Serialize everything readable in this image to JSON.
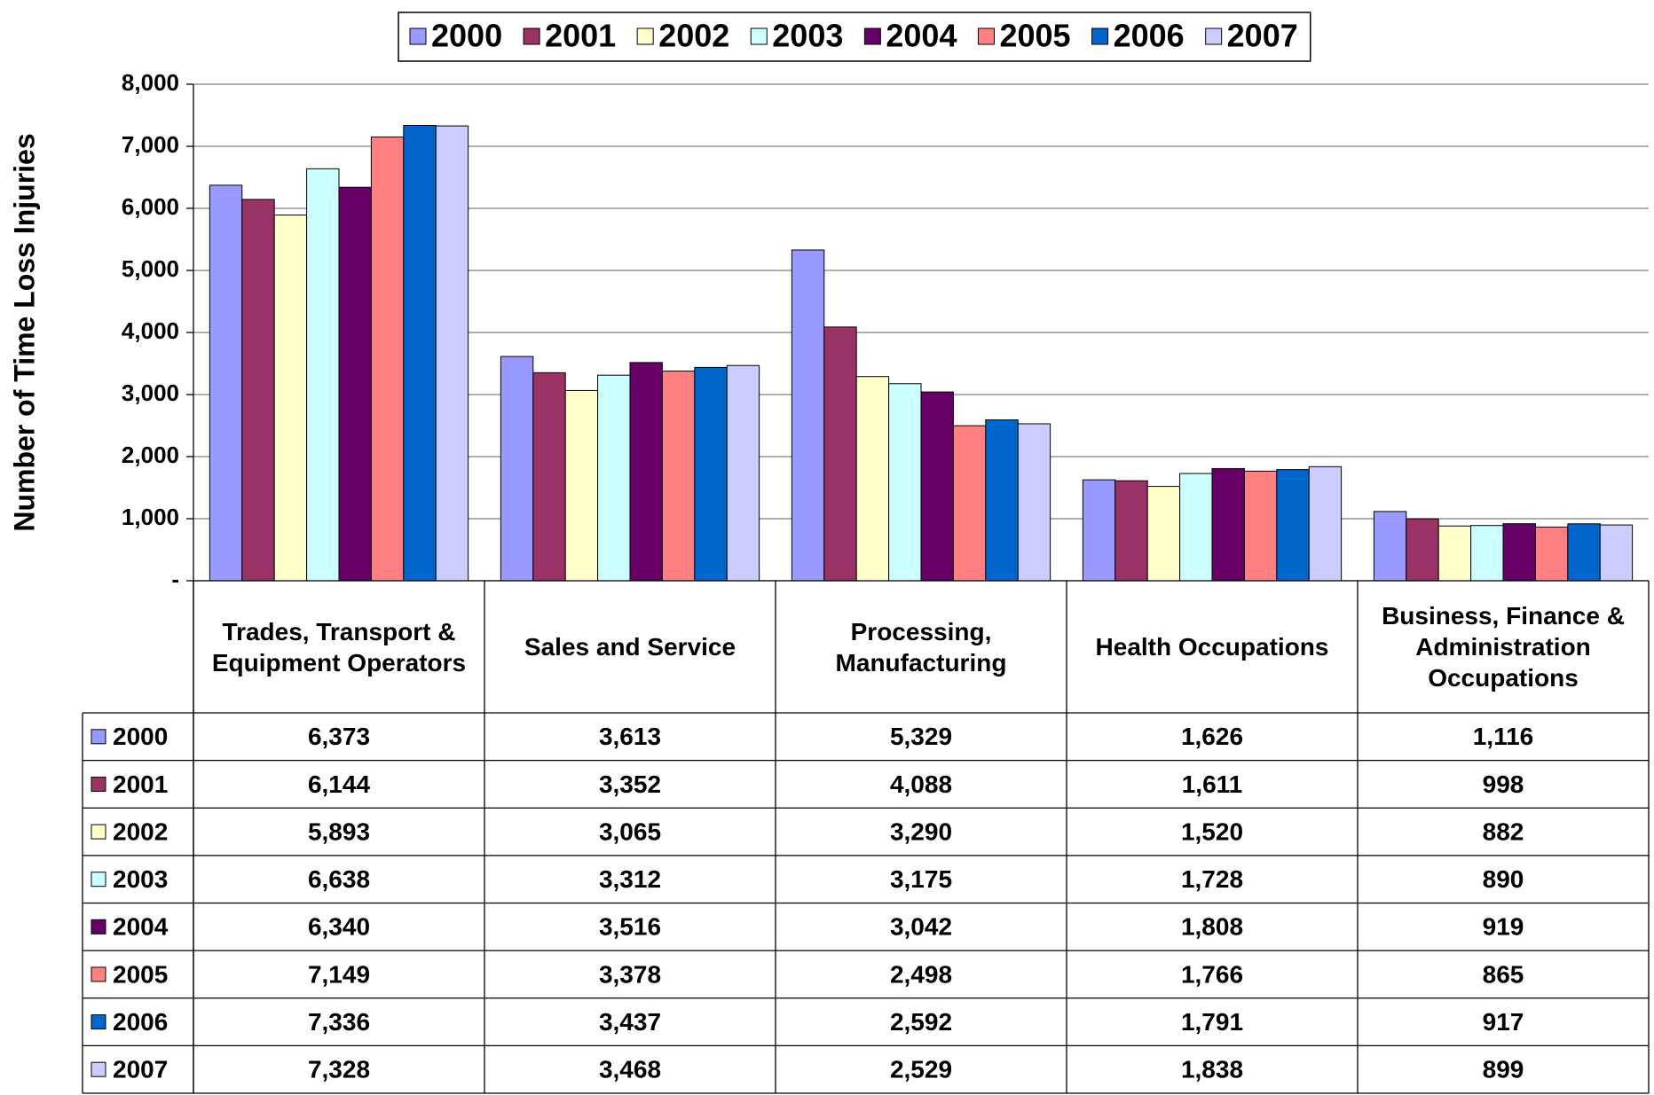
{
  "chart_data": {
    "type": "bar",
    "y_axis_label": "Number of Time Loss Injuries",
    "categories": [
      "Trades, Transport & Equipment Operators",
      "Sales and Service",
      "Processing, Manufacturing",
      "Health Occupations",
      "Business, Finance & Administration Occupations"
    ],
    "series": [
      {
        "name": "2000",
        "color": "#9999ff",
        "values": [
          6373,
          3613,
          5329,
          1626,
          1116
        ],
        "value_labels": [
          "6,373",
          "3,613",
          "5,329",
          "1,626",
          "1,116"
        ]
      },
      {
        "name": "2001",
        "color": "#993366",
        "values": [
          6144,
          3352,
          4088,
          1611,
          998
        ],
        "value_labels": [
          "6,144",
          "3,352",
          "4,088",
          "1,611",
          "998"
        ]
      },
      {
        "name": "2002",
        "color": "#ffffcc",
        "values": [
          5893,
          3065,
          3290,
          1520,
          882
        ],
        "value_labels": [
          "5,893",
          "3,065",
          "3,290",
          "1,520",
          "882"
        ]
      },
      {
        "name": "2003",
        "color": "#ccffff",
        "values": [
          6638,
          3312,
          3175,
          1728,
          890
        ],
        "value_labels": [
          "6,638",
          "3,312",
          "3,175",
          "1,728",
          "890"
        ]
      },
      {
        "name": "2004",
        "color": "#660066",
        "values": [
          6340,
          3516,
          3042,
          1808,
          919
        ],
        "value_labels": [
          "6,340",
          "3,516",
          "3,042",
          "1,808",
          "919"
        ]
      },
      {
        "name": "2005",
        "color": "#ff8080",
        "values": [
          7149,
          3378,
          2498,
          1766,
          865
        ],
        "value_labels": [
          "7,149",
          "3,378",
          "2,498",
          "1,766",
          "865"
        ]
      },
      {
        "name": "2006",
        "color": "#0066cc",
        "values": [
          7336,
          3437,
          2592,
          1791,
          917
        ],
        "value_labels": [
          "7,336",
          "3,437",
          "2,592",
          "1,791",
          "917"
        ]
      },
      {
        "name": "2007",
        "color": "#ccccff",
        "values": [
          7328,
          3468,
          2529,
          1838,
          899
        ],
        "value_labels": [
          "7,328",
          "3,468",
          "2,529",
          "1,838",
          "899"
        ]
      }
    ],
    "ylim": [
      0,
      8000
    ],
    "yticks": [
      {
        "value": 0,
        "label": "-"
      },
      {
        "value": 1000,
        "label": "1,000"
      },
      {
        "value": 2000,
        "label": "2,000"
      },
      {
        "value": 3000,
        "label": "3,000"
      },
      {
        "value": 4000,
        "label": "4,000"
      },
      {
        "value": 5000,
        "label": "5,000"
      },
      {
        "value": 6000,
        "label": "6,000"
      },
      {
        "value": 7000,
        "label": "7,000"
      },
      {
        "value": 8000,
        "label": "8,000"
      }
    ],
    "grid": true,
    "legend": "top",
    "data_table": true
  }
}
